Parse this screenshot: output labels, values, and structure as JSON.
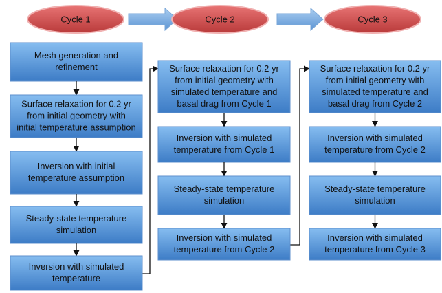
{
  "cycles": [
    {
      "label": "Cycle 1",
      "boxes": [
        {
          "lines": [
            "Mesh generation and",
            "refinement"
          ]
        },
        {
          "lines": [
            "Surface relaxation for 0.2 yr",
            "from initial geometry with",
            "initial temperature assumption"
          ]
        },
        {
          "lines": [
            "Inversion with initial",
            "temperature assumption"
          ]
        },
        {
          "lines": [
            "Steady-state temperature",
            "simulation"
          ]
        },
        {
          "lines": [
            "Inversion with simulated",
            "temperature"
          ]
        }
      ]
    },
    {
      "label": "Cycle 2",
      "boxes": [
        {
          "lines": [
            "Surface relaxation for 0.2 yr",
            "from initial geometry with",
            "simulated temperature and",
            "basal drag from Cycle 1"
          ]
        },
        {
          "lines": [
            "Inversion with simulated",
            "temperature from Cycle 1"
          ]
        },
        {
          "lines": [
            "Steady-state temperature",
            "simulation"
          ]
        },
        {
          "lines": [
            "Inversion with simulated",
            "temperature from Cycle 2"
          ]
        }
      ]
    },
    {
      "label": "Cycle 3",
      "boxes": [
        {
          "lines": [
            "Surface relaxation for 0.2 yr",
            "from initial geometry with",
            "simulated temperature and",
            "basal drag from Cycle 2"
          ]
        },
        {
          "lines": [
            "Inversion with simulated",
            "temperature from Cycle 2"
          ]
        },
        {
          "lines": [
            "Steady-state temperature",
            "simulation"
          ]
        },
        {
          "lines": [
            "Inversion with simulated",
            "temperature from Cycle 3"
          ]
        }
      ]
    }
  ]
}
